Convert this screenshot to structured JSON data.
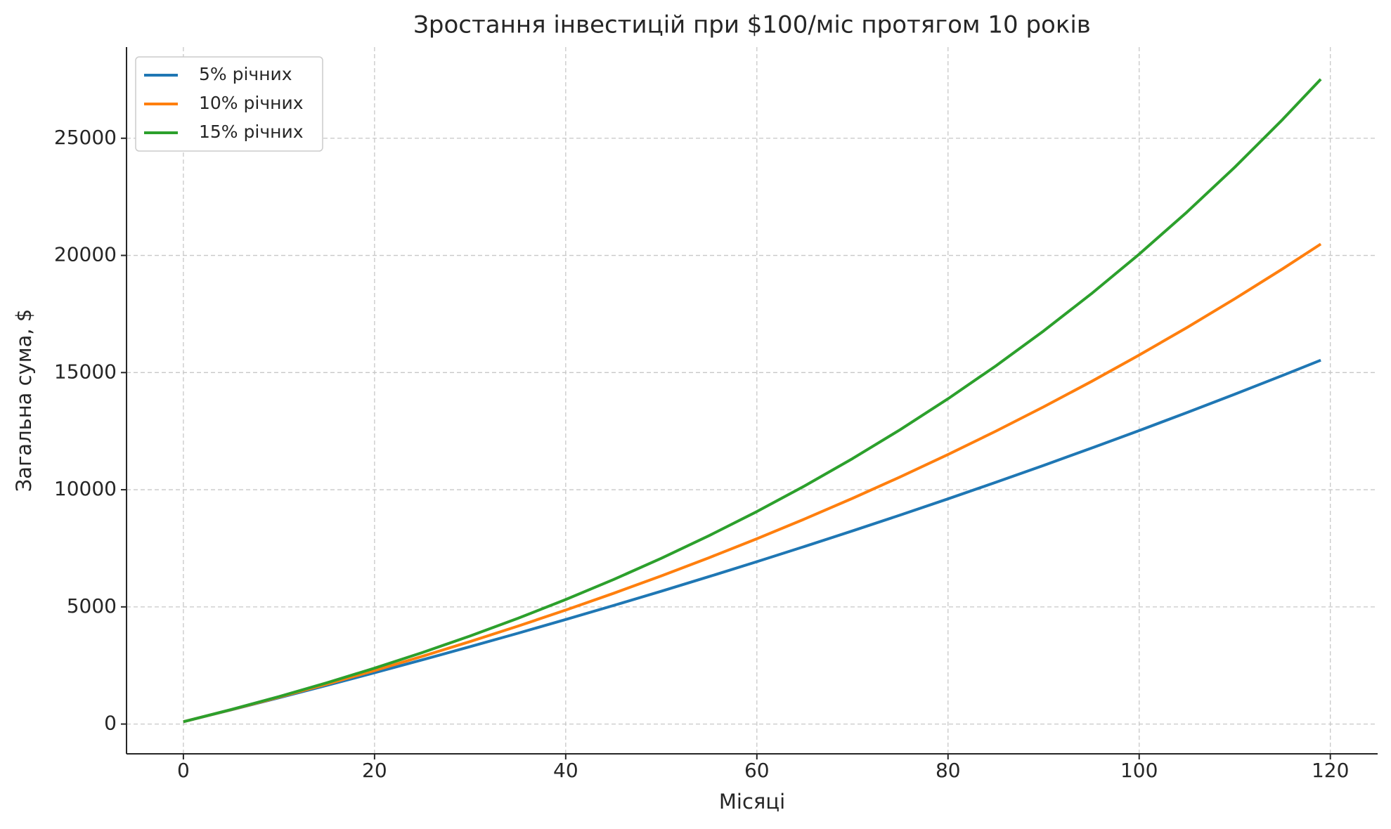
{
  "chart_data": {
    "type": "line",
    "title": "Зростання інвестицій при $100/міс протягом 10 років",
    "x_label": "Місяці",
    "y_label": "Загальна сума, $",
    "x": [
      0,
      5,
      10,
      15,
      20,
      25,
      30,
      35,
      40,
      45,
      50,
      55,
      60,
      65,
      70,
      75,
      80,
      85,
      90,
      95,
      100,
      105,
      110,
      115,
      119
    ],
    "series": [
      {
        "name": "5% річних",
        "color": "#1f77b4",
        "values": [
          100,
          606,
          1123,
          1651,
          2190,
          2740,
          3302,
          3875,
          4461,
          5059,
          5669,
          6293,
          6929,
          7579,
          8242,
          8920,
          9611,
          10317,
          11038,
          11774,
          12526,
          13293,
          14077,
          14876,
          15528
        ]
      },
      {
        "name": "10% річних",
        "color": "#ff7f0e",
        "values": [
          100,
          613,
          1147,
          1704,
          2285,
          2890,
          3521,
          4178,
          4864,
          5578,
          6323,
          7099,
          7908,
          8752,
          9631,
          10547,
          11503,
          12498,
          13536,
          14618,
          15746,
          16921,
          18147,
          19424,
          20485
        ]
      },
      {
        "name": "15% річних",
        "color": "#2ca02c",
        "values": [
          100,
          619,
          1171,
          1759,
          2385,
          3050,
          3758,
          4512,
          5313,
          6166,
          7074,
          8040,
          9068,
          10162,
          11326,
          12564,
          13882,
          15284,
          16776,
          18364,
          20053,
          21850,
          23763,
          25798,
          27520
        ]
      }
    ],
    "xlim": [
      -5.95,
      124.95
    ],
    "ylim": [
      -1271,
      28891
    ],
    "xticks": [
      0,
      20,
      40,
      60,
      80,
      100,
      120
    ],
    "yticks": [
      0,
      5000,
      10000,
      15000,
      20000,
      25000
    ],
    "grid": true,
    "legend": "upper left"
  }
}
